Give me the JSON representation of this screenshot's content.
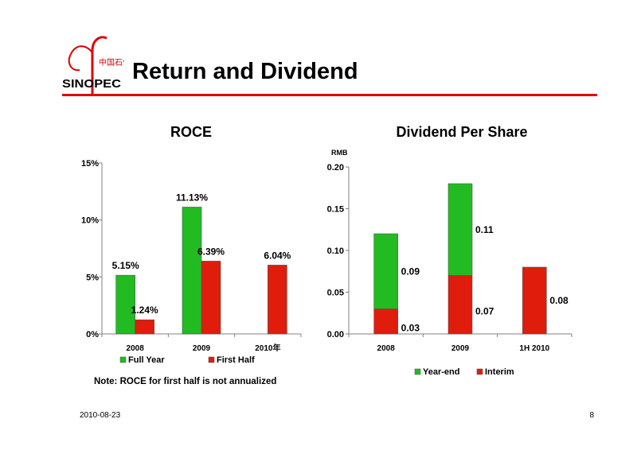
{
  "header": {
    "title": "Return and Dividend",
    "logo_text": "SINOPEC",
    "logo_chinese": "中国石化"
  },
  "colors": {
    "brand_red": "#e00000",
    "green": "#22bb22",
    "red": "#e01c0c"
  },
  "chart_data": [
    {
      "type": "bar",
      "title": "ROCE",
      "categories": [
        "2008",
        "2009",
        "2010年"
      ],
      "series": [
        {
          "name": "Full Year",
          "values": [
            5.15,
            11.13,
            null
          ],
          "labels": [
            "5.15%",
            "11.13%",
            ""
          ],
          "color": "#22bb22"
        },
        {
          "name": "First Half",
          "values": [
            1.24,
            6.39,
            6.04
          ],
          "labels": [
            "1.24%",
            "6.39%",
            "6.04%"
          ],
          "color": "#e01c0c"
        }
      ],
      "yticks": [
        "0%",
        "5%",
        "10%",
        "15%"
      ],
      "ylim": [
        0,
        15
      ],
      "grid": false,
      "legend": "bottom"
    },
    {
      "type": "bar",
      "stacked": true,
      "title": "Dividend Per Share",
      "ylabel": "RMB",
      "categories": [
        "2008",
        "2009",
        "1H 2010"
      ],
      "series": [
        {
          "name": "Year-end",
          "values": [
            0.09,
            0.11,
            null
          ],
          "labels": [
            "0.09",
            "0.11",
            ""
          ],
          "color": "#22bb22"
        },
        {
          "name": "Interim",
          "values": [
            0.03,
            0.07,
            0.08
          ],
          "labels": [
            "0.03",
            "0.07",
            "0.08"
          ],
          "color": "#e01c0c"
        }
      ],
      "yticks": [
        "0.00",
        "0.05",
        "0.10",
        "0.15",
        "0.20"
      ],
      "ylim": [
        0,
        0.2
      ],
      "grid": false,
      "legend": "bottom"
    }
  ],
  "footer": {
    "note": "Note: ROCE for first half is not annualized",
    "date": "2010-08-23",
    "page": "8"
  }
}
